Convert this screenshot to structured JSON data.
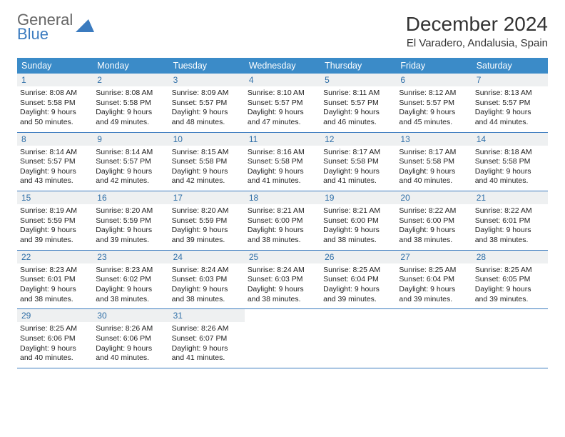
{
  "brand": {
    "part1": "General",
    "part2": "Blue"
  },
  "title": "December 2024",
  "location": "El Varadero, Andalusia, Spain",
  "colors": {
    "header_bg": "#3b8bc8",
    "header_text": "#ffffff",
    "daynum_bg": "#eef0f1",
    "daynum_text": "#2f6fa8",
    "rule": "#3b7bbf",
    "brand_accent": "#3b7bbf"
  },
  "day_headers": [
    "Sunday",
    "Monday",
    "Tuesday",
    "Wednesday",
    "Thursday",
    "Friday",
    "Saturday"
  ],
  "weeks": [
    [
      {
        "n": "1",
        "sr": "Sunrise: 8:08 AM",
        "ss": "Sunset: 5:58 PM",
        "d1": "Daylight: 9 hours",
        "d2": "and 50 minutes."
      },
      {
        "n": "2",
        "sr": "Sunrise: 8:08 AM",
        "ss": "Sunset: 5:58 PM",
        "d1": "Daylight: 9 hours",
        "d2": "and 49 minutes."
      },
      {
        "n": "3",
        "sr": "Sunrise: 8:09 AM",
        "ss": "Sunset: 5:57 PM",
        "d1": "Daylight: 9 hours",
        "d2": "and 48 minutes."
      },
      {
        "n": "4",
        "sr": "Sunrise: 8:10 AM",
        "ss": "Sunset: 5:57 PM",
        "d1": "Daylight: 9 hours",
        "d2": "and 47 minutes."
      },
      {
        "n": "5",
        "sr": "Sunrise: 8:11 AM",
        "ss": "Sunset: 5:57 PM",
        "d1": "Daylight: 9 hours",
        "d2": "and 46 minutes."
      },
      {
        "n": "6",
        "sr": "Sunrise: 8:12 AM",
        "ss": "Sunset: 5:57 PM",
        "d1": "Daylight: 9 hours",
        "d2": "and 45 minutes."
      },
      {
        "n": "7",
        "sr": "Sunrise: 8:13 AM",
        "ss": "Sunset: 5:57 PM",
        "d1": "Daylight: 9 hours",
        "d2": "and 44 minutes."
      }
    ],
    [
      {
        "n": "8",
        "sr": "Sunrise: 8:14 AM",
        "ss": "Sunset: 5:57 PM",
        "d1": "Daylight: 9 hours",
        "d2": "and 43 minutes."
      },
      {
        "n": "9",
        "sr": "Sunrise: 8:14 AM",
        "ss": "Sunset: 5:57 PM",
        "d1": "Daylight: 9 hours",
        "d2": "and 42 minutes."
      },
      {
        "n": "10",
        "sr": "Sunrise: 8:15 AM",
        "ss": "Sunset: 5:58 PM",
        "d1": "Daylight: 9 hours",
        "d2": "and 42 minutes."
      },
      {
        "n": "11",
        "sr": "Sunrise: 8:16 AM",
        "ss": "Sunset: 5:58 PM",
        "d1": "Daylight: 9 hours",
        "d2": "and 41 minutes."
      },
      {
        "n": "12",
        "sr": "Sunrise: 8:17 AM",
        "ss": "Sunset: 5:58 PM",
        "d1": "Daylight: 9 hours",
        "d2": "and 41 minutes."
      },
      {
        "n": "13",
        "sr": "Sunrise: 8:17 AM",
        "ss": "Sunset: 5:58 PM",
        "d1": "Daylight: 9 hours",
        "d2": "and 40 minutes."
      },
      {
        "n": "14",
        "sr": "Sunrise: 8:18 AM",
        "ss": "Sunset: 5:58 PM",
        "d1": "Daylight: 9 hours",
        "d2": "and 40 minutes."
      }
    ],
    [
      {
        "n": "15",
        "sr": "Sunrise: 8:19 AM",
        "ss": "Sunset: 5:59 PM",
        "d1": "Daylight: 9 hours",
        "d2": "and 39 minutes."
      },
      {
        "n": "16",
        "sr": "Sunrise: 8:20 AM",
        "ss": "Sunset: 5:59 PM",
        "d1": "Daylight: 9 hours",
        "d2": "and 39 minutes."
      },
      {
        "n": "17",
        "sr": "Sunrise: 8:20 AM",
        "ss": "Sunset: 5:59 PM",
        "d1": "Daylight: 9 hours",
        "d2": "and 39 minutes."
      },
      {
        "n": "18",
        "sr": "Sunrise: 8:21 AM",
        "ss": "Sunset: 6:00 PM",
        "d1": "Daylight: 9 hours",
        "d2": "and 38 minutes."
      },
      {
        "n": "19",
        "sr": "Sunrise: 8:21 AM",
        "ss": "Sunset: 6:00 PM",
        "d1": "Daylight: 9 hours",
        "d2": "and 38 minutes."
      },
      {
        "n": "20",
        "sr": "Sunrise: 8:22 AM",
        "ss": "Sunset: 6:00 PM",
        "d1": "Daylight: 9 hours",
        "d2": "and 38 minutes."
      },
      {
        "n": "21",
        "sr": "Sunrise: 8:22 AM",
        "ss": "Sunset: 6:01 PM",
        "d1": "Daylight: 9 hours",
        "d2": "and 38 minutes."
      }
    ],
    [
      {
        "n": "22",
        "sr": "Sunrise: 8:23 AM",
        "ss": "Sunset: 6:01 PM",
        "d1": "Daylight: 9 hours",
        "d2": "and 38 minutes."
      },
      {
        "n": "23",
        "sr": "Sunrise: 8:23 AM",
        "ss": "Sunset: 6:02 PM",
        "d1": "Daylight: 9 hours",
        "d2": "and 38 minutes."
      },
      {
        "n": "24",
        "sr": "Sunrise: 8:24 AM",
        "ss": "Sunset: 6:03 PM",
        "d1": "Daylight: 9 hours",
        "d2": "and 38 minutes."
      },
      {
        "n": "25",
        "sr": "Sunrise: 8:24 AM",
        "ss": "Sunset: 6:03 PM",
        "d1": "Daylight: 9 hours",
        "d2": "and 38 minutes."
      },
      {
        "n": "26",
        "sr": "Sunrise: 8:25 AM",
        "ss": "Sunset: 6:04 PM",
        "d1": "Daylight: 9 hours",
        "d2": "and 39 minutes."
      },
      {
        "n": "27",
        "sr": "Sunrise: 8:25 AM",
        "ss": "Sunset: 6:04 PM",
        "d1": "Daylight: 9 hours",
        "d2": "and 39 minutes."
      },
      {
        "n": "28",
        "sr": "Sunrise: 8:25 AM",
        "ss": "Sunset: 6:05 PM",
        "d1": "Daylight: 9 hours",
        "d2": "and 39 minutes."
      }
    ],
    [
      {
        "n": "29",
        "sr": "Sunrise: 8:25 AM",
        "ss": "Sunset: 6:06 PM",
        "d1": "Daylight: 9 hours",
        "d2": "and 40 minutes."
      },
      {
        "n": "30",
        "sr": "Sunrise: 8:26 AM",
        "ss": "Sunset: 6:06 PM",
        "d1": "Daylight: 9 hours",
        "d2": "and 40 minutes."
      },
      {
        "n": "31",
        "sr": "Sunrise: 8:26 AM",
        "ss": "Sunset: 6:07 PM",
        "d1": "Daylight: 9 hours",
        "d2": "and 41 minutes."
      },
      {
        "empty": true
      },
      {
        "empty": true
      },
      {
        "empty": true
      },
      {
        "empty": true
      }
    ]
  ]
}
